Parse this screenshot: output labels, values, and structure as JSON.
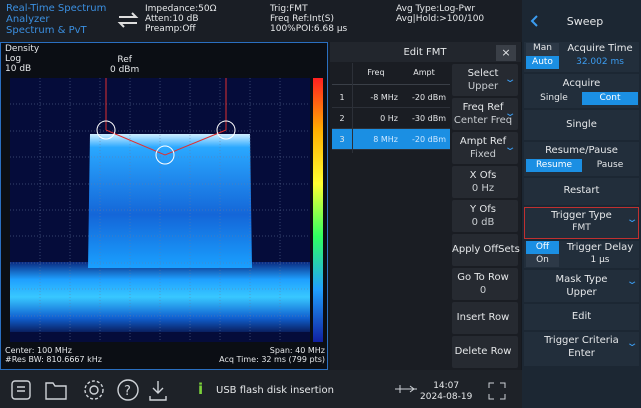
{
  "header": {
    "mode": [
      "Real-Time Spectrum",
      "Analyzer",
      "Spectrum & PvT"
    ],
    "col1": [
      "Impedance:50Ω",
      "Atten:10 dB",
      "Preamp:Off"
    ],
    "col2": [
      "Trig:FMT",
      "Freq Ref:Int(S)",
      "100%POI:6.68 µs"
    ],
    "col3": [
      "Avg Type:Log-Pwr",
      "Avg|Hold:>100/100"
    ]
  },
  "plot": {
    "view": "Density",
    "scale": "Log",
    "div": "10 dB",
    "ref_label": "Ref",
    "ref": "0 dBm",
    "center": "Center: 100 MHz",
    "rbw": "#Res BW: 810.6667 kHz",
    "span": "Span: 40 MHz",
    "acq": "Acq Time: 32 ms (799 pts)"
  },
  "table": {
    "title": "Edit FMT",
    "close": "×",
    "columns": [
      "Freq",
      "Ampt"
    ],
    "rows": [
      [
        "1",
        "-8 MHz",
        "-20 dBm"
      ],
      [
        "2",
        "0 Hz",
        "-30 dBm"
      ],
      [
        "3",
        "8 MHz",
        "-20 dBm"
      ]
    ]
  },
  "softkeys": [
    [
      "Select",
      "Upper"
    ],
    [
      "Freq Ref",
      "Center Freq"
    ],
    [
      "Ampt Ref",
      "Fixed"
    ],
    [
      "X Ofs",
      "0 Hz"
    ],
    [
      "Y Ofs",
      "0 dB"
    ],
    [
      "Apply OffSets"
    ],
    [
      "Go To Row",
      "0"
    ],
    [
      "Insert Row"
    ],
    [
      "Delete Row"
    ]
  ],
  "menu": {
    "title": "Sweep",
    "man": "Man",
    "auto": "Auto",
    "acquire_time": "Acquire Time",
    "acquire_time_value": "32.002 ms",
    "acquire": "Acquire",
    "single_opt": "Single",
    "cont_opt": "Cont",
    "single": "Single",
    "resume_pause": "Resume/Pause",
    "resume": "Resume",
    "pause": "Pause",
    "restart": "Restart",
    "trigger_type": "Trigger Type",
    "trigger_type_value": "FMT",
    "off": "Off",
    "on": "On",
    "trigger_delay": "Trigger Delay",
    "trigger_delay_value": "1 µs",
    "mask_type": "Mask Type",
    "mask_type_value": "Upper",
    "edit": "Edit",
    "trigger_criteria": "Trigger Criteria",
    "trigger_criteria_value": "Enter"
  },
  "statusbar": {
    "message": "USB flash disk insertion",
    "time": "14:07",
    "date": "2024-08-19"
  }
}
